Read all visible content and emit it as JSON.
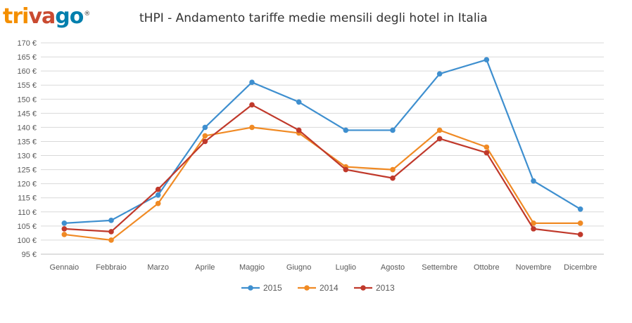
{
  "logo": {
    "letters": [
      {
        "ch": "t",
        "color": "#f48f00"
      },
      {
        "ch": "r",
        "color": "#f48f00"
      },
      {
        "ch": "i",
        "color": "#f48f00"
      },
      {
        "ch": "v",
        "color": "#c94a30"
      },
      {
        "ch": "a",
        "color": "#c94a30"
      },
      {
        "ch": "g",
        "color": "#007fad"
      },
      {
        "ch": "o",
        "color": "#007fad"
      }
    ],
    "registered": "®"
  },
  "chart_data": {
    "type": "line",
    "title": "tHPI - Andamento tariffe medie mensili degli hotel in Italia",
    "categories": [
      "Gennaio",
      "Febbraio",
      "Marzo",
      "Aprile",
      "Maggio",
      "Giugno",
      "Luglio",
      "Agosto",
      "Settembre",
      "Ottobre",
      "Novembre",
      "Dicembre"
    ],
    "ylim": [
      95,
      170
    ],
    "ytick_step": 5,
    "y_unit": "€",
    "grid": true,
    "legend_position": "bottom",
    "series": [
      {
        "name": "2015",
        "color": "#3e8fcf",
        "values": [
          106,
          107,
          116,
          140,
          156,
          149,
          139,
          139,
          159,
          164,
          121,
          111
        ]
      },
      {
        "name": "2014",
        "color": "#f08a24",
        "values": [
          102,
          100,
          113,
          137,
          140,
          138,
          126,
          125,
          139,
          133,
          106,
          106
        ]
      },
      {
        "name": "2013",
        "color": "#c0392b",
        "values": [
          104,
          103,
          118,
          135,
          148,
          139,
          125,
          122,
          136,
          131,
          104,
          102
        ]
      }
    ]
  }
}
